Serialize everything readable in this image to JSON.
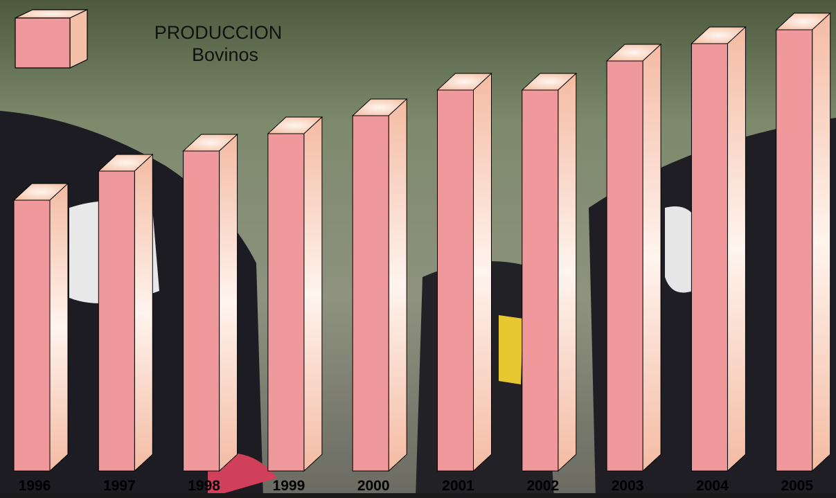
{
  "chart_data": {
    "type": "bar3d",
    "legend": {
      "title": "PRODUCCION"
    },
    "categories": [
      "1996",
      "1997",
      "1998",
      "1999",
      "2000",
      "2001",
      "2002",
      "2003",
      "2004",
      "2005"
    ],
    "series": [
      {
        "name": "Bovinos",
        "color": "#f0999c",
        "values": [
          391,
          433,
          462,
          487,
          513,
          550,
          550,
          592,
          617,
          637
        ]
      }
    ],
    "ylim": [
      0,
      680
    ]
  }
}
